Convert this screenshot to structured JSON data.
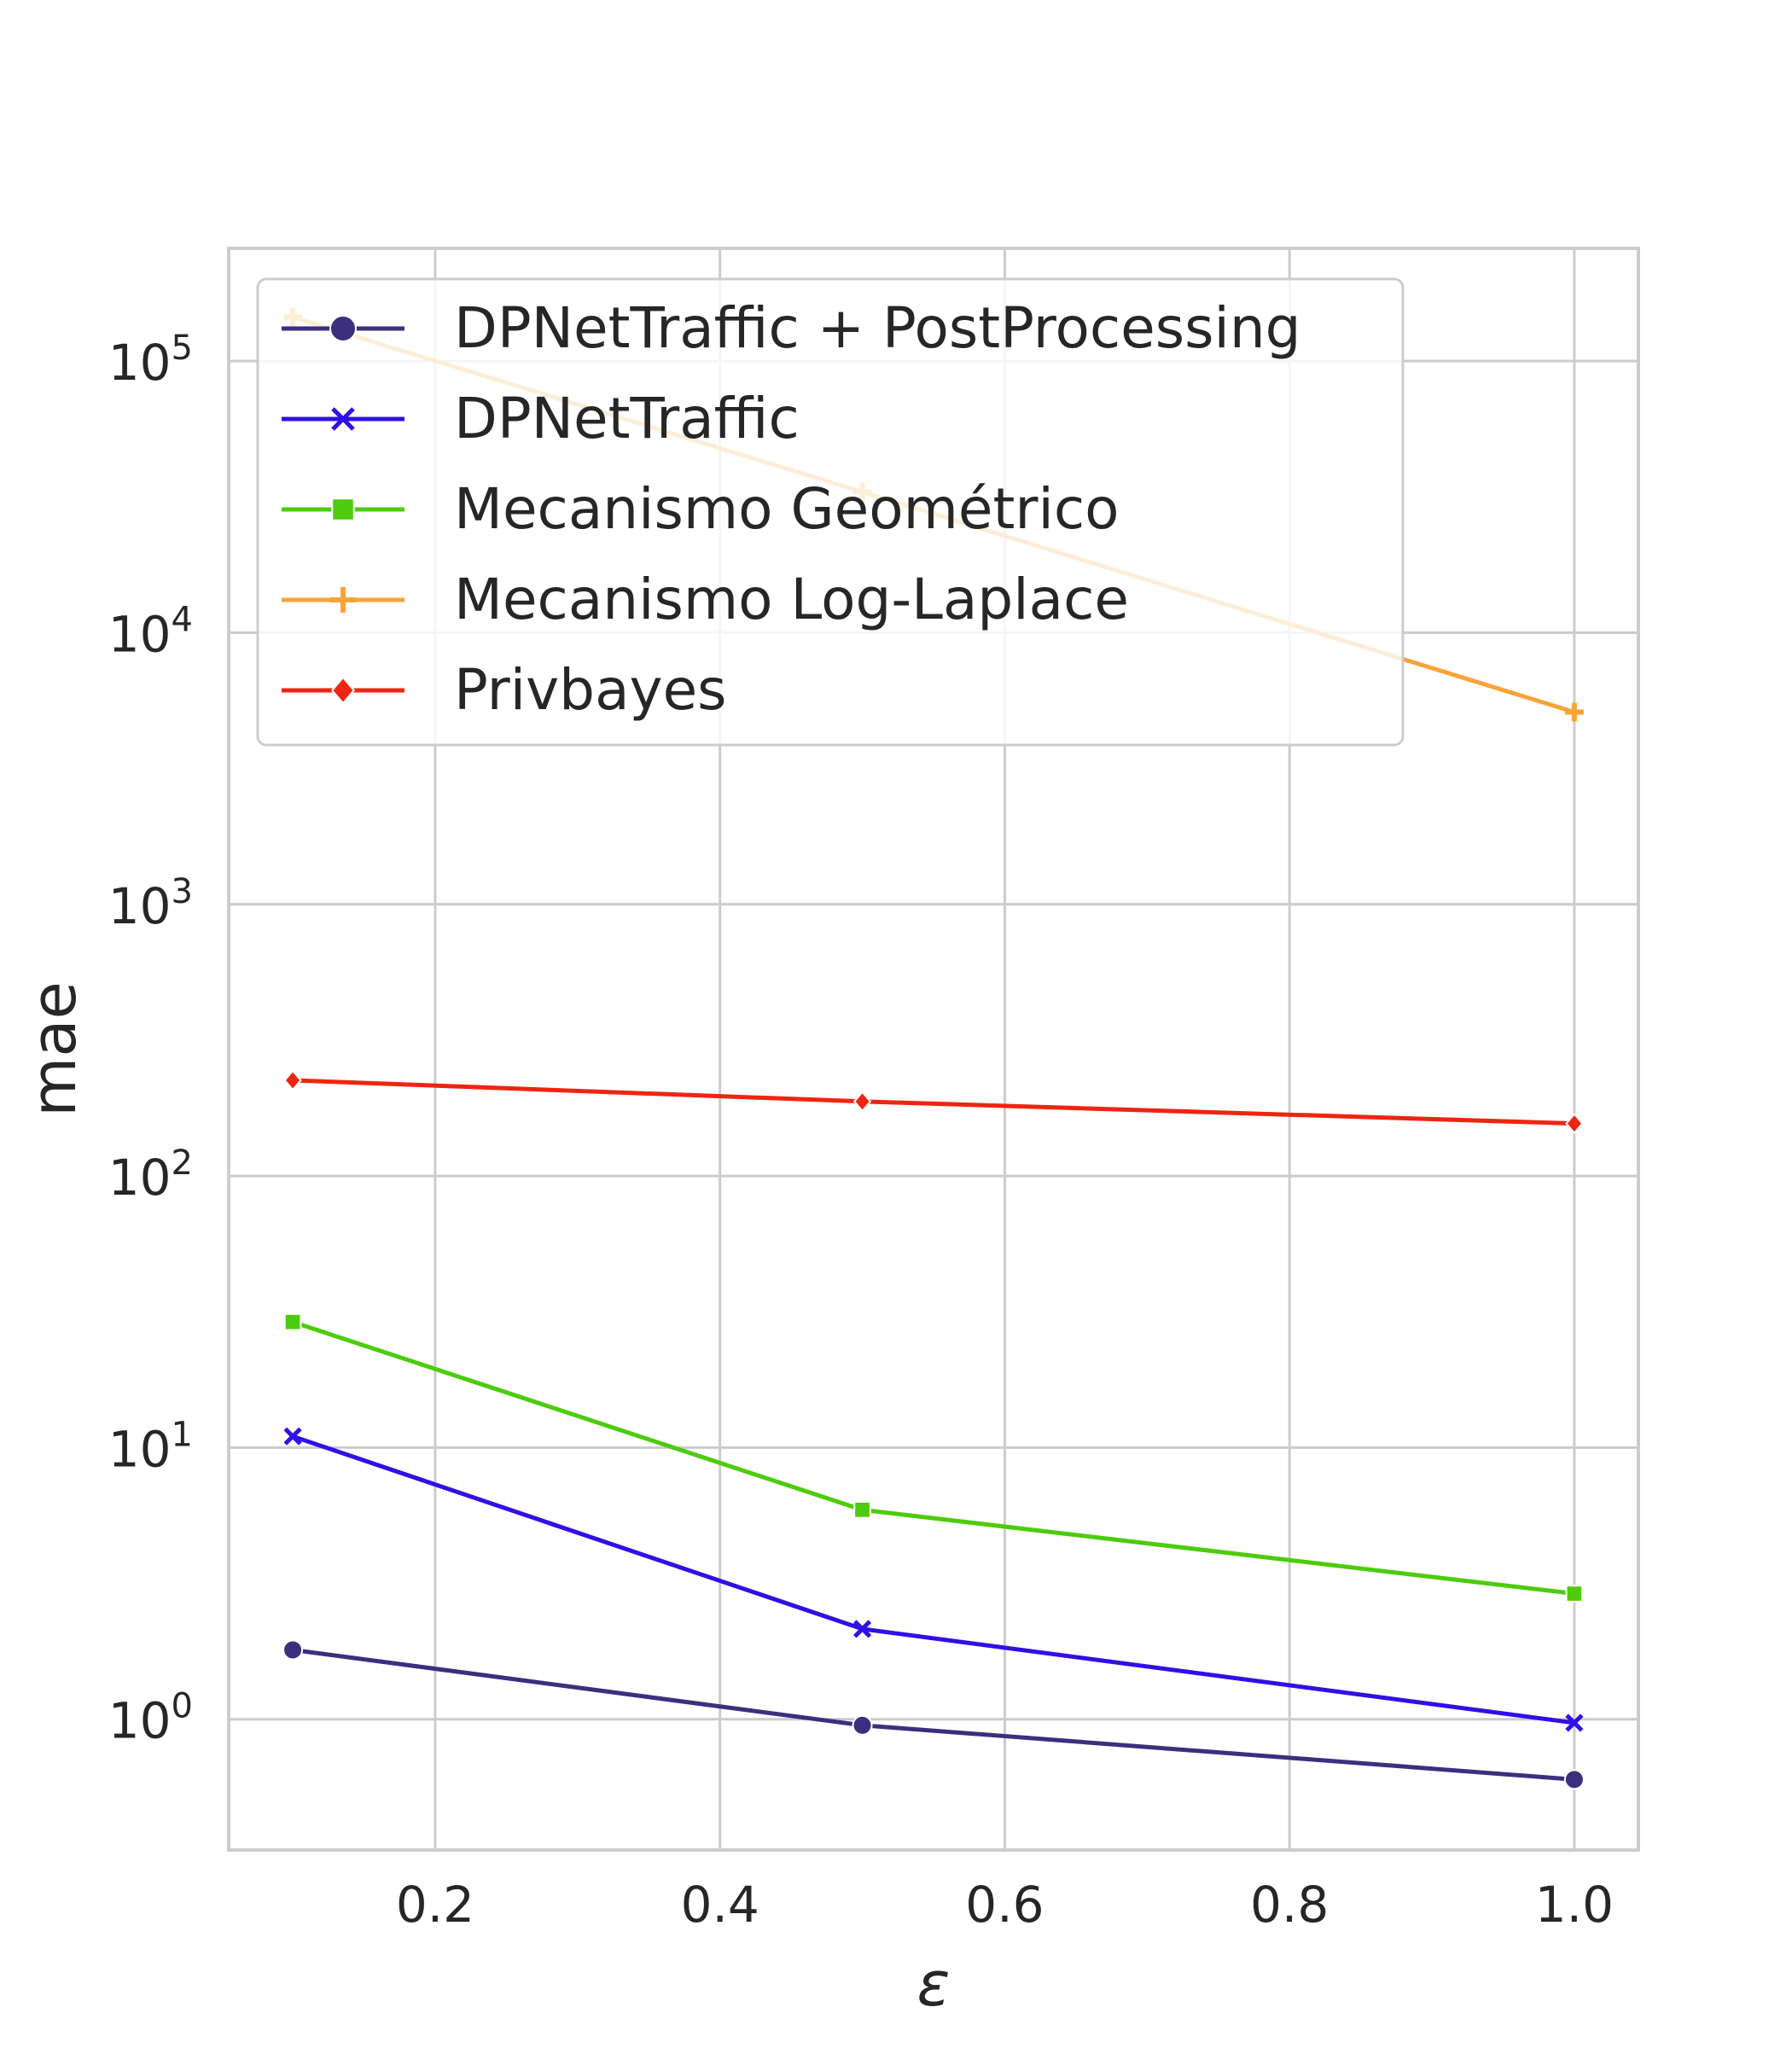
{
  "chart_data": {
    "type": "line",
    "title": "",
    "xlabel": "ε",
    "ylabel": "mae",
    "yscale": "log",
    "xlim": [
      0.055,
      1.045
    ],
    "ylim": [
      0.33,
      260000
    ],
    "x_ticks": [
      0.2,
      0.4,
      0.6,
      0.8,
      1.0
    ],
    "x_tick_labels": [
      "0.2",
      "0.4",
      "0.6",
      "0.8",
      "1.0"
    ],
    "y_ticks": [
      1,
      10,
      100,
      1000,
      10000,
      100000
    ],
    "y_tick_labels": [
      {
        "base": "10",
        "exp": "0"
      },
      {
        "base": "10",
        "exp": "1"
      },
      {
        "base": "10",
        "exp": "2"
      },
      {
        "base": "10",
        "exp": "3"
      },
      {
        "base": "10",
        "exp": "4"
      },
      {
        "base": "10",
        "exp": "5"
      }
    ],
    "grid": true,
    "legend_position": "top-left",
    "x": [
      0.1,
      0.5,
      1.0
    ],
    "series": [
      {
        "name": "DPNetTraffic + PostProcessing",
        "color": "#3b2f7e",
        "marker": "circle",
        "values": [
          1.8,
          0.95,
          0.6
        ]
      },
      {
        "name": "DPNetTraffic",
        "color": "#2f10e6",
        "marker": "x",
        "values": [
          11,
          2.15,
          0.97
        ]
      },
      {
        "name": "Mecanismo Geométrico",
        "color": "#4ccc0c",
        "marker": "square",
        "values": [
          29,
          5.9,
          2.9
        ]
      },
      {
        "name": "Mecanismo Log-Laplace",
        "color": "#f9a33b",
        "marker": "plus",
        "values": [
          145000,
          33000,
          5100
        ]
      },
      {
        "name": "Privbayes",
        "color": "#ee2511",
        "marker": "diamond",
        "values": [
          225,
          188,
          156
        ]
      }
    ]
  }
}
